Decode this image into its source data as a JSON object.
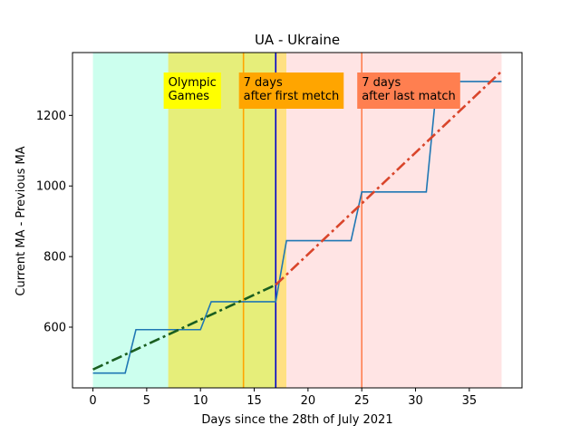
{
  "chart_data": {
    "type": "line",
    "title": "UA - Ukraine",
    "xlabel": "Days since the 28th of July 2021",
    "ylabel": "Current MA - Previous MA",
    "xlim": [
      -1.9,
      39.9
    ],
    "ylim": [
      428,
      1378
    ],
    "xticks": [
      0,
      5,
      10,
      15,
      20,
      25,
      30,
      35
    ],
    "yticks": [
      600,
      800,
      1000,
      1200
    ],
    "grid": false,
    "regions": [
      {
        "x0": 0,
        "x1": 7,
        "color": "#ccffee"
      },
      {
        "x0": 7,
        "x1": 17,
        "color": "#e6ee7a"
      },
      {
        "x0": 17,
        "x1": 18,
        "color": "#ffe082"
      },
      {
        "x0": 18,
        "x1": 38,
        "color": "#ffe4e4"
      }
    ],
    "vlines": [
      {
        "x": 14,
        "color": "#ffa500"
      },
      {
        "x": 17,
        "color": "#0000cc"
      },
      {
        "x": 25,
        "color": "#ff7f50"
      }
    ],
    "annotations": [
      {
        "x": 7,
        "text": [
          "Olympic",
          "Games"
        ],
        "color": "#ffff00"
      },
      {
        "x": 14,
        "text": [
          "7 days",
          "after first metch"
        ],
        "color": "#ffa500"
      },
      {
        "x": 25,
        "text": [
          "7 days",
          "after last match"
        ],
        "color": "#ff7f50"
      }
    ],
    "series": [
      {
        "style": "step",
        "color": "#1f77b4",
        "x": [
          0,
          3,
          4,
          10,
          11,
          17,
          18,
          24,
          25,
          31,
          32,
          38
        ],
        "y": [
          470,
          470,
          593,
          593,
          672,
          672,
          845,
          845,
          983,
          983,
          1296,
          1296
        ]
      },
      {
        "style": "dashdot",
        "color": "#1a5e20",
        "x": [
          0,
          17
        ],
        "y": [
          480,
          720
        ]
      },
      {
        "style": "dashdot",
        "color": "#d9452b",
        "x": [
          17,
          38
        ],
        "y": [
          720,
          1325
        ]
      }
    ]
  }
}
